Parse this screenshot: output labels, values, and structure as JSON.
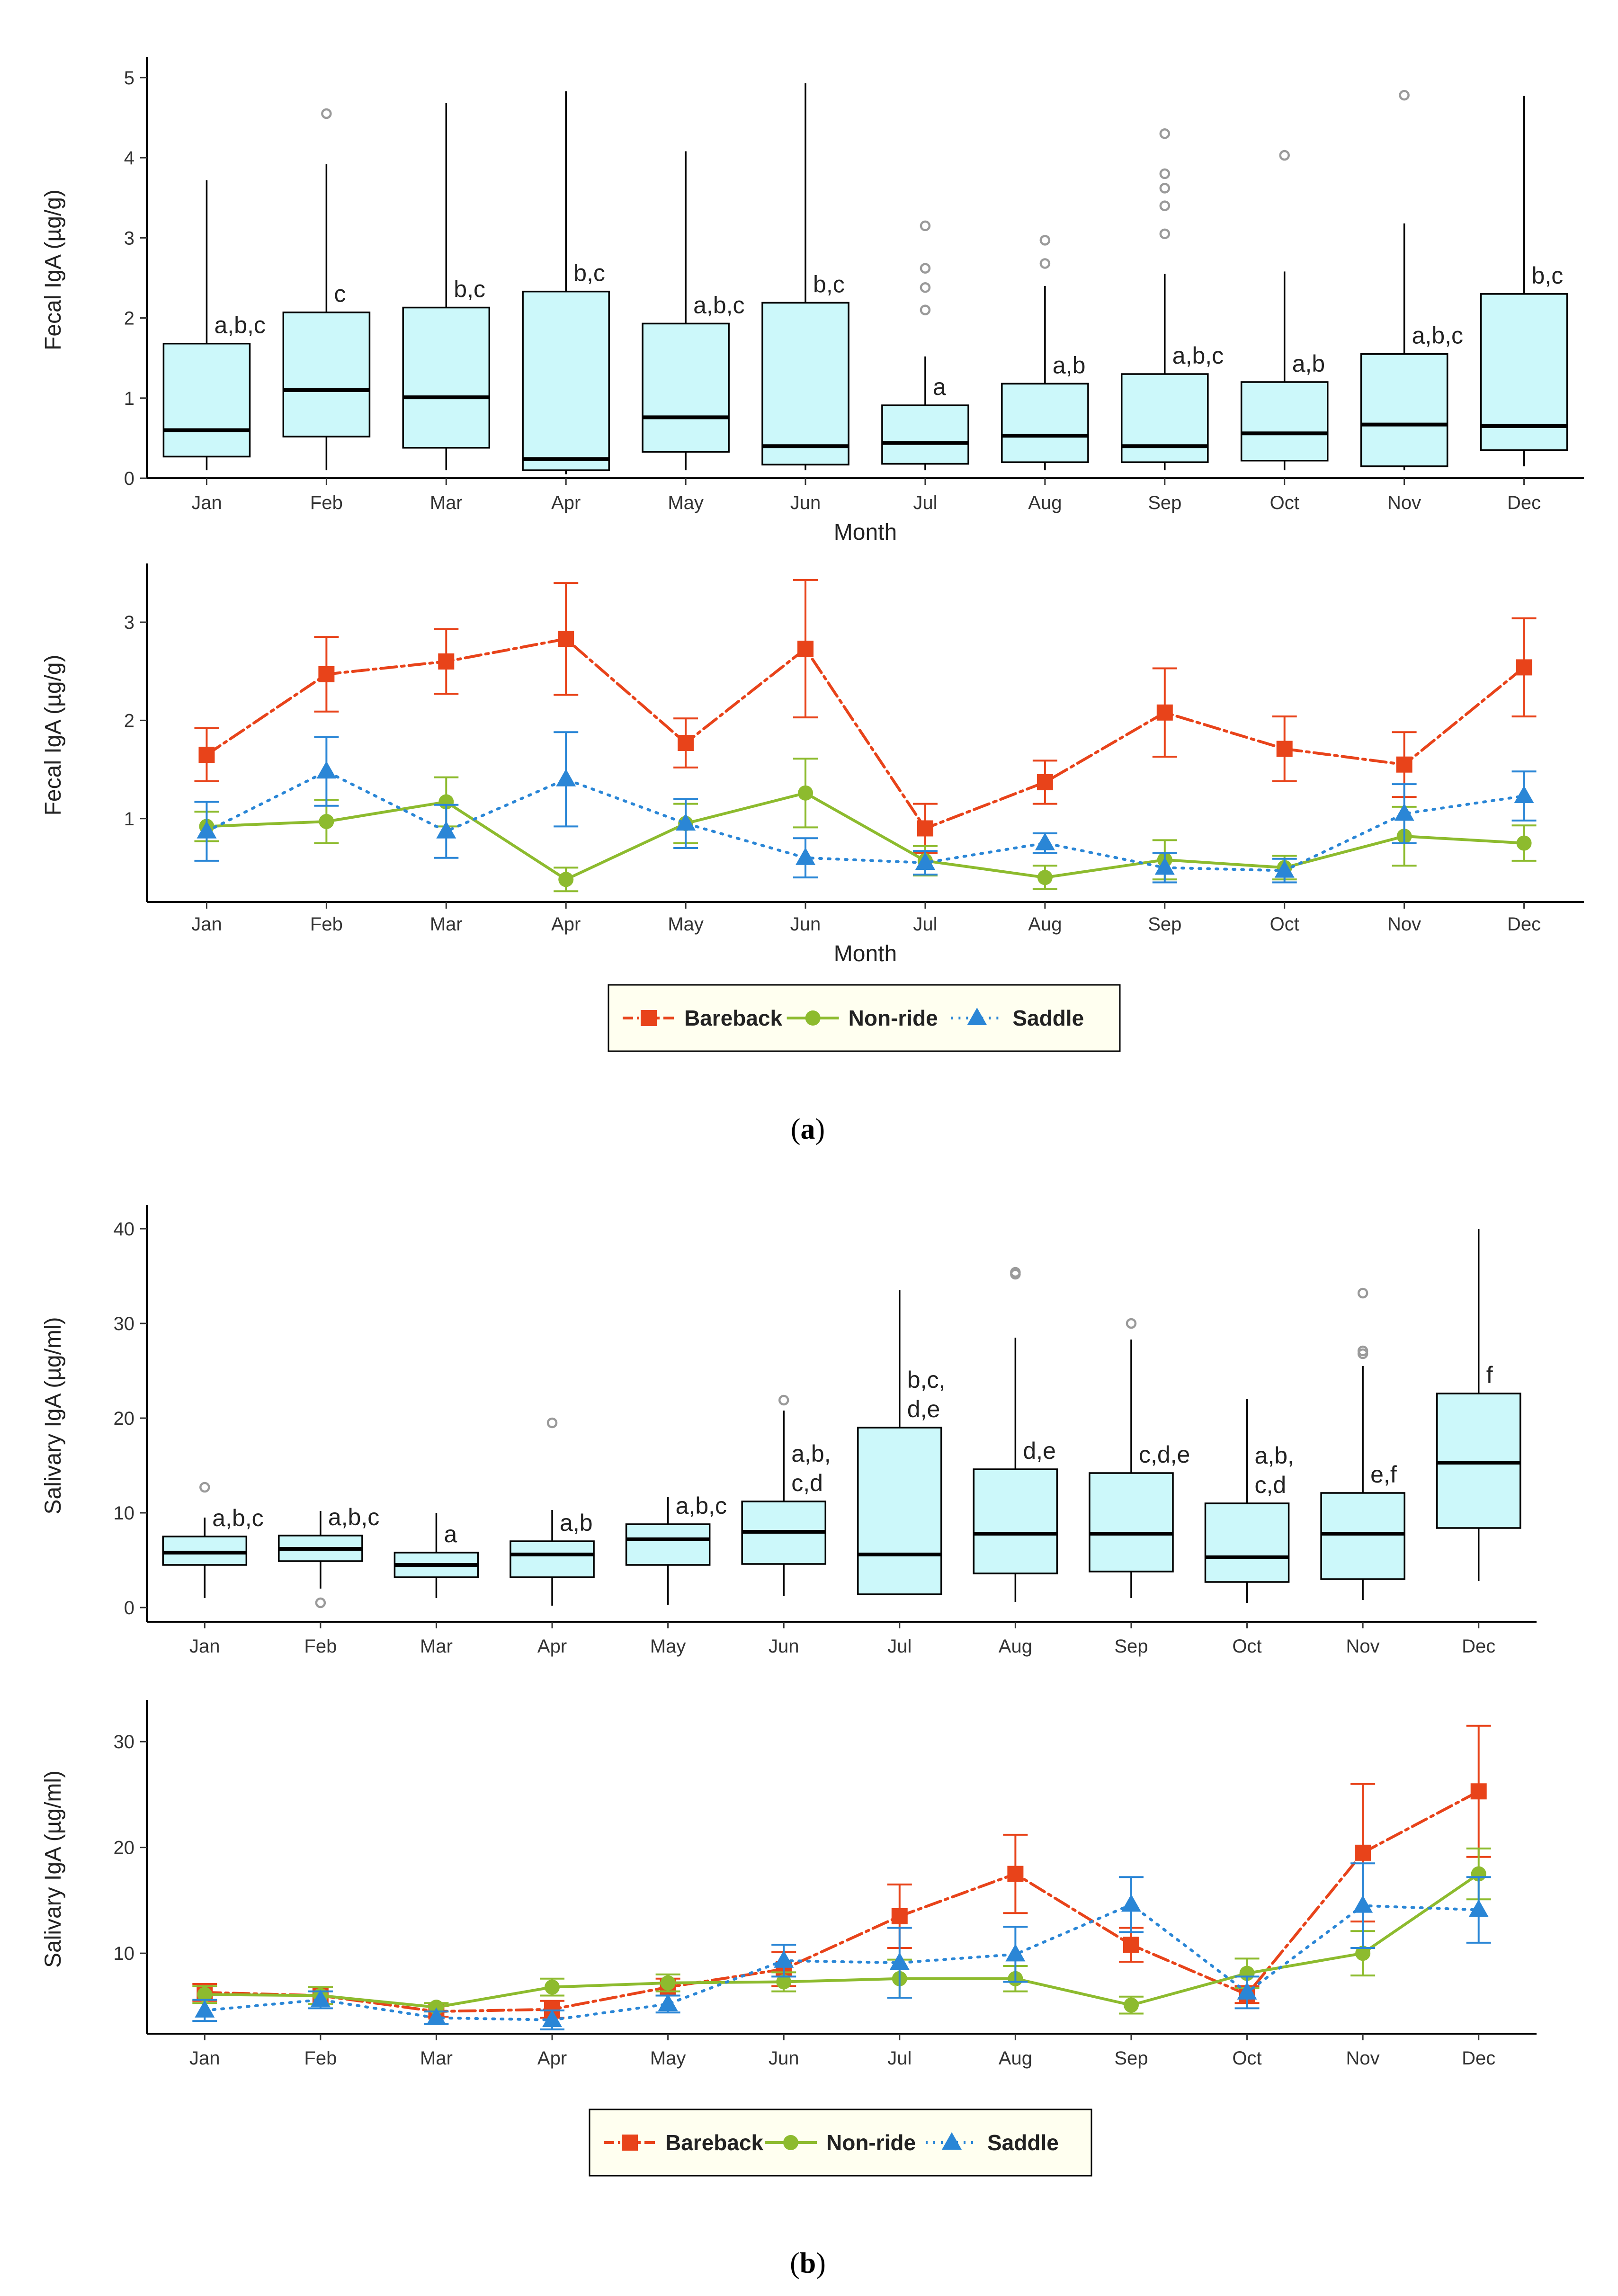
{
  "captions": {
    "a": "a",
    "b": "b"
  },
  "legend": [
    {
      "name": "Bareback",
      "color": "#E8431A",
      "marker": "square",
      "dash": "dashdot"
    },
    {
      "name": "Non-ride",
      "color": "#8DBB2E",
      "marker": "circle",
      "dash": "solid"
    },
    {
      "name": "Saddle",
      "color": "#2A86D6",
      "marker": "triangle",
      "dash": "dotted"
    }
  ],
  "colors": {
    "box_fill": "#CCF8FA",
    "box_stroke": "#000000",
    "outlier": "#9A9A9A"
  },
  "chart_data": [
    {
      "id": "a_box",
      "type": "boxplot",
      "ylabel": "Fecal IgA (µg/g)",
      "xlabel": "Month",
      "ylim": [
        0,
        5.2
      ],
      "yticks": [
        0,
        1,
        2,
        3,
        4,
        5
      ],
      "categories": [
        "Jan",
        "Feb",
        "Mar",
        "Apr",
        "May",
        "Jun",
        "Jul",
        "Aug",
        "Sep",
        "Oct",
        "Nov",
        "Dec"
      ],
      "boxes": [
        {
          "min": 0.1,
          "q1": 0.27,
          "median": 0.6,
          "q3": 1.68,
          "max": 3.72,
          "outliers": [],
          "label": "a,b,c"
        },
        {
          "min": 0.1,
          "q1": 0.52,
          "median": 1.1,
          "q3": 2.07,
          "max": 3.92,
          "outliers": [
            4.55
          ],
          "label": "c"
        },
        {
          "min": 0.1,
          "q1": 0.38,
          "median": 1.01,
          "q3": 2.13,
          "max": 4.68,
          "outliers": [],
          "label": "b,c"
        },
        {
          "min": 0.05,
          "q1": 0.1,
          "median": 0.24,
          "q3": 2.33,
          "max": 4.83,
          "outliers": [],
          "label": "b,c"
        },
        {
          "min": 0.1,
          "q1": 0.33,
          "median": 0.76,
          "q3": 1.93,
          "max": 4.08,
          "outliers": [],
          "label": "a,b,c"
        },
        {
          "min": 0.1,
          "q1": 0.17,
          "median": 0.4,
          "q3": 2.19,
          "max": 4.93,
          "outliers": [],
          "label": "b,c"
        },
        {
          "min": 0.1,
          "q1": 0.18,
          "median": 0.44,
          "q3": 0.91,
          "max": 1.52,
          "outliers": [
            2.1,
            2.38,
            2.62,
            3.15
          ],
          "label": "a"
        },
        {
          "min": 0.1,
          "q1": 0.2,
          "median": 0.53,
          "q3": 1.18,
          "max": 2.4,
          "outliers": [
            2.68,
            2.97
          ],
          "label": "a,b"
        },
        {
          "min": 0.1,
          "q1": 0.2,
          "median": 0.4,
          "q3": 1.3,
          "max": 2.55,
          "outliers": [
            3.05,
            3.4,
            3.62,
            3.8,
            4.3
          ],
          "label": "a,b,c"
        },
        {
          "min": 0.1,
          "q1": 0.22,
          "median": 0.56,
          "q3": 1.2,
          "max": 2.58,
          "outliers": [
            4.03
          ],
          "label": "a,b"
        },
        {
          "min": 0.1,
          "q1": 0.15,
          "median": 0.67,
          "q3": 1.55,
          "max": 3.18,
          "outliers": [
            4.78
          ],
          "label": "a,b,c"
        },
        {
          "min": 0.15,
          "q1": 0.35,
          "median": 0.65,
          "q3": 2.3,
          "max": 4.77,
          "outliers": [],
          "label": "b,c"
        }
      ]
    },
    {
      "id": "a_line",
      "type": "line",
      "ylabel": "Fecal IgA (µg/g)",
      "xlabel": "Month",
      "ylim": [
        0.15,
        3.55
      ],
      "yticks": [
        1,
        2,
        3
      ],
      "categories": [
        "Jan",
        "Feb",
        "Mar",
        "Apr",
        "May",
        "Jun",
        "Jul",
        "Aug",
        "Sep",
        "Oct",
        "Nov",
        "Dec"
      ],
      "series": [
        {
          "name": "Bareback",
          "values": [
            1.65,
            2.47,
            2.6,
            2.83,
            1.77,
            2.73,
            0.9,
            1.37,
            2.08,
            1.71,
            1.55,
            2.54
          ],
          "errors": [
            0.27,
            0.38,
            0.33,
            0.57,
            0.25,
            0.7,
            0.25,
            0.22,
            0.45,
            0.33,
            0.33,
            0.5
          ]
        },
        {
          "name": "Non-ride",
          "values": [
            0.92,
            0.97,
            1.17,
            0.38,
            0.95,
            1.26,
            0.57,
            0.4,
            0.58,
            0.5,
            0.82,
            0.75
          ],
          "errors": [
            0.15,
            0.22,
            0.25,
            0.12,
            0.2,
            0.35,
            0.15,
            0.12,
            0.2,
            0.12,
            0.3,
            0.18
          ]
        },
        {
          "name": "Saddle",
          "values": [
            0.87,
            1.48,
            0.87,
            1.4,
            0.95,
            0.6,
            0.55,
            0.75,
            0.5,
            0.47,
            1.05,
            1.23
          ],
          "errors": [
            0.3,
            0.35,
            0.27,
            0.48,
            0.25,
            0.2,
            0.12,
            0.1,
            0.15,
            0.12,
            0.3,
            0.25
          ]
        }
      ]
    },
    {
      "id": "b_box",
      "type": "boxplot",
      "ylabel": "Salivary IgA (µg/ml)",
      "xlabel": "",
      "ylim": [
        -1.5,
        42
      ],
      "yticks": [
        0,
        10,
        20,
        30,
        40
      ],
      "categories": [
        "Jan",
        "Feb",
        "Mar",
        "Apr",
        "May",
        "Jun",
        "Jul",
        "Aug",
        "Sep",
        "Oct",
        "Nov",
        "Dec"
      ],
      "boxes": [
        {
          "min": 1.0,
          "q1": 4.5,
          "median": 5.8,
          "q3": 7.5,
          "max": 9.5,
          "outliers": [
            12.7
          ],
          "label": "a,b,c"
        },
        {
          "min": 2.0,
          "q1": 4.9,
          "median": 6.2,
          "q3": 7.6,
          "max": 10.2,
          "outliers": [
            0.5
          ],
          "label": "a,b,c"
        },
        {
          "min": 1.0,
          "q1": 3.2,
          "median": 4.5,
          "q3": 5.8,
          "max": 10.0,
          "outliers": [],
          "label": "a"
        },
        {
          "min": 0.2,
          "q1": 3.2,
          "median": 5.6,
          "q3": 7.0,
          "max": 10.3,
          "outliers": [
            19.5
          ],
          "label": "a,b"
        },
        {
          "min": 0.3,
          "q1": 4.5,
          "median": 7.2,
          "q3": 8.8,
          "max": 11.7,
          "outliers": [],
          "label": "a,b,c"
        },
        {
          "min": 1.2,
          "q1": 4.6,
          "median": 8.0,
          "q3": 11.2,
          "max": 20.8,
          "outliers": [
            21.9
          ],
          "label": "a,b,\nc,d"
        },
        {
          "min": 1.4,
          "q1": 1.4,
          "median": 5.6,
          "q3": 19.0,
          "max": 33.5,
          "outliers": [],
          "label": "b,c,\nd,e"
        },
        {
          "min": 0.6,
          "q1": 3.6,
          "median": 7.8,
          "q3": 14.6,
          "max": 28.5,
          "outliers": [
            35.2,
            35.4
          ],
          "label": "d,e"
        },
        {
          "min": 1.0,
          "q1": 3.8,
          "median": 7.8,
          "q3": 14.2,
          "max": 28.3,
          "outliers": [
            30.0
          ],
          "label": "c,d,e"
        },
        {
          "min": 0.5,
          "q1": 2.7,
          "median": 5.3,
          "q3": 11.0,
          "max": 22.0,
          "outliers": [],
          "label": "a,b,\nc,d"
        },
        {
          "min": 0.8,
          "q1": 3.0,
          "median": 7.8,
          "q3": 12.1,
          "max": 25.5,
          "outliers": [
            26.8,
            27.1,
            33.2
          ],
          "label": "e,f"
        },
        {
          "min": 2.8,
          "q1": 8.4,
          "median": 15.3,
          "q3": 22.6,
          "max": 40.0,
          "outliers": [],
          "label": "f"
        }
      ]
    },
    {
      "id": "b_line",
      "type": "line",
      "ylabel": "Salivary IgA (µg/ml)",
      "xlabel": "",
      "ylim": [
        2.4,
        33.5
      ],
      "yticks": [
        10,
        20,
        30
      ],
      "categories": [
        "Jan",
        "Feb",
        "Mar",
        "Apr",
        "May",
        "Jun",
        "Jul",
        "Aug",
        "Sep",
        "Oct",
        "Nov",
        "Dec"
      ],
      "series": [
        {
          "name": "Bareback",
          "values": [
            6.3,
            6.0,
            4.5,
            4.7,
            6.8,
            8.5,
            13.5,
            17.5,
            10.8,
            6.1,
            19.5,
            25.3
          ],
          "errors": [
            0.8,
            0.8,
            0.5,
            0.8,
            0.8,
            1.6,
            3.0,
            3.7,
            1.6,
            0.8,
            6.5,
            6.2
          ]
        },
        {
          "name": "Non-ride",
          "values": [
            6.1,
            6.0,
            4.9,
            6.8,
            7.2,
            7.3,
            7.6,
            7.6,
            5.1,
            8.1,
            10.0,
            17.5
          ],
          "errors": [
            0.8,
            0.8,
            0.4,
            0.8,
            0.8,
            0.9,
            1.8,
            1.2,
            0.8,
            1.4,
            2.1,
            2.4
          ]
        },
        {
          "name": "Saddle",
          "values": [
            4.6,
            5.6,
            3.9,
            3.7,
            5.2,
            9.3,
            9.1,
            9.9,
            14.6,
            6.3,
            14.5,
            14.1
          ],
          "errors": [
            1.0,
            0.8,
            0.6,
            0.9,
            0.8,
            1.5,
            3.3,
            2.6,
            2.6,
            1.5,
            4.0,
            3.1
          ]
        }
      ]
    }
  ]
}
